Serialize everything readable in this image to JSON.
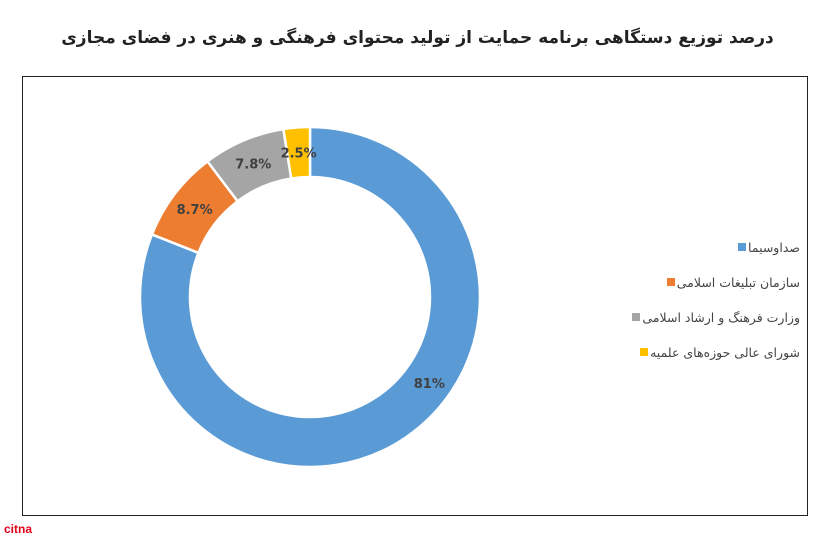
{
  "header": {
    "title": "درصد توزیع دستگاهی برنامه حمایت از تولید محتوای فرهنگی و هنری در فضای مجازی"
  },
  "brand": {
    "text": "citna",
    "color": "#e3001b"
  },
  "chart_data": {
    "type": "pie",
    "variant": "donut",
    "title": "درصد توزیع دستگاهی برنامه حمایت از تولید محتوای فرهنگی و هنری در فضای مجازی",
    "legend_position": "right",
    "slices": [
      {
        "name": "صداوسیما",
        "value": 81,
        "label": "81%",
        "color": "#5b9bd5"
      },
      {
        "name": "سازمان تبلیغات اسلامی",
        "value": 8.7,
        "label": "8.7%",
        "color": "#ed7d31"
      },
      {
        "name": "وزارت فرهنگ و ارشاد اسلامی",
        "value": 7.8,
        "label": "7.8%",
        "color": "#a5a5a5"
      },
      {
        "name": "شورای عالی حوزه‌های علمیه",
        "value": 2.5,
        "label": "2.5%",
        "color": "#ffc000"
      }
    ]
  }
}
